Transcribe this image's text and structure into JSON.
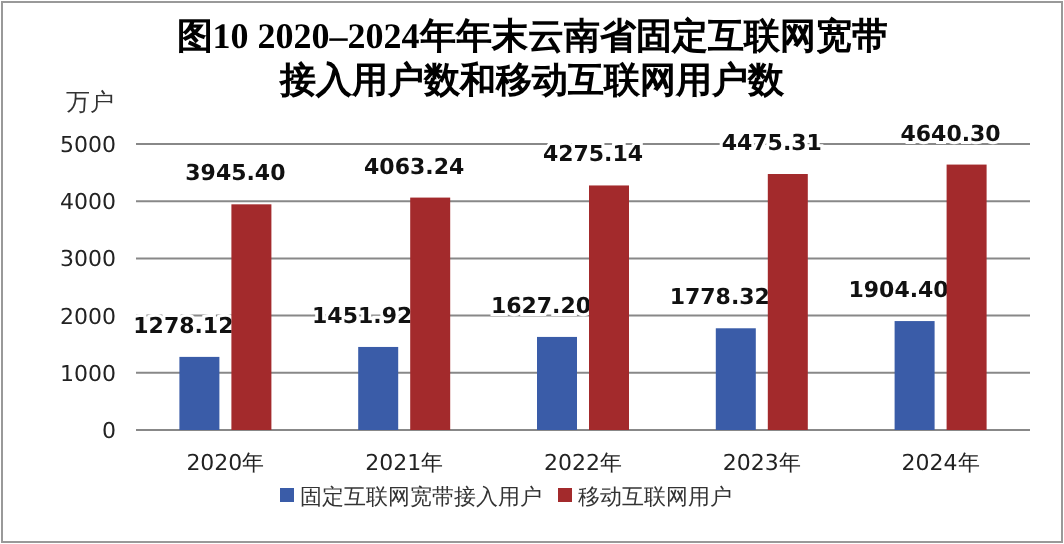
{
  "chart_data": {
    "type": "bar",
    "title": "图10 2020–2024年年末云南省固定互联网宽带接入用户数和移动互联网用户数",
    "ylabel": "万户",
    "categories": [
      "2020年",
      "2021年",
      "2022年",
      "2023年",
      "2024年"
    ],
    "series": [
      {
        "name": "固定互联网宽带接入用户",
        "color": "#3a5ca8",
        "values": [
          1278.12,
          1451.92,
          1627.2,
          1778.32,
          1904.4
        ],
        "value_labels": [
          "1278.12",
          "1451.92",
          "1627.20",
          "1778.32",
          "1904.40"
        ]
      },
      {
        "name": "移动互联网用户",
        "color": "#a32a2c",
        "values": [
          3945.4,
          4063.24,
          4275.14,
          4475.31,
          4640.3
        ],
        "value_labels": [
          "3945.40",
          "4063.24",
          "4275.14",
          "4475.31",
          "4640.30"
        ]
      }
    ],
    "ylim": [
      0,
      5000
    ],
    "yticks": [
      0,
      1000,
      2000,
      3000,
      4000,
      5000
    ],
    "grid": "y",
    "legend": "bottom"
  }
}
